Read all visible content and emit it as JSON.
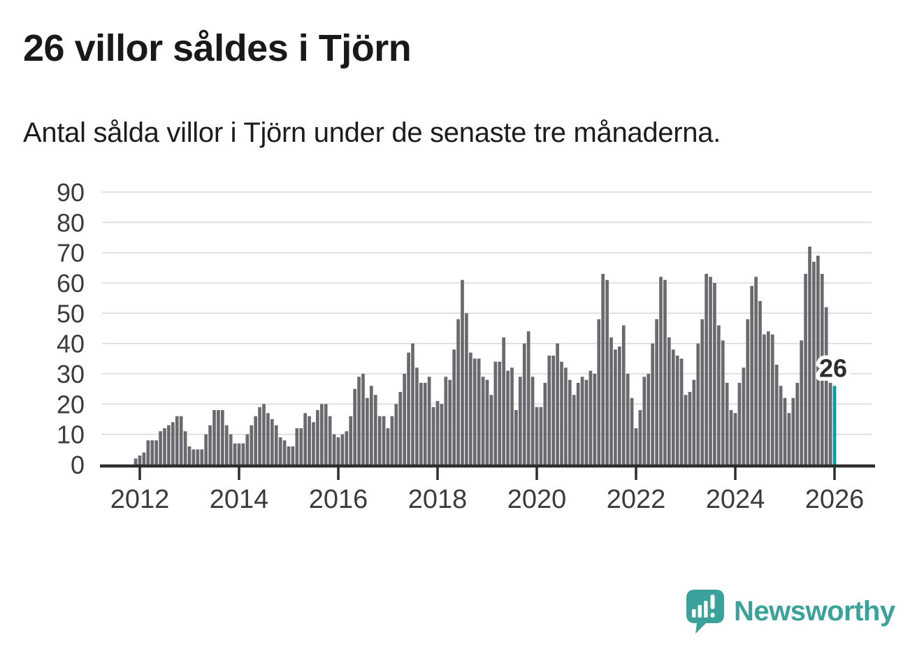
{
  "title": "26 villor såldes i Tjörn",
  "subtitle": "Antal sålda villor i Tjörn under de senaste tre månaderna.",
  "annotation": {
    "last_value_label": "26"
  },
  "logo": {
    "text": "Newsworthy",
    "color": "#3ba29b",
    "icon": "newsworthy-speech-bubble-bar-chart-icon"
  },
  "chart_data": {
    "type": "bar",
    "title": "26 villor såldes i Tjörn",
    "subtitle": "Antal sålda villor i Tjörn under de senaste tre månaderna.",
    "xlabel": "",
    "ylabel": "",
    "x_frequency": "monthly",
    "x_first_month": "2011-12",
    "x_last_month": "2026-01",
    "xtick_labels": [
      "2012",
      "2014",
      "2016",
      "2018",
      "2020",
      "2022",
      "2024",
      "2026"
    ],
    "ytick_values": [
      0,
      10,
      20,
      30,
      40,
      50,
      60,
      70,
      80,
      90
    ],
    "ylim": [
      0,
      90
    ],
    "grid": true,
    "legend_position": "none",
    "bar_color": "#6a6a6e",
    "highlight_color": "#00a0a2",
    "axis_color": "#2d2d2d",
    "gridline_color": "#d9d9d9",
    "highlight_index": 169,
    "annotated_last_value": 26,
    "values": [
      2,
      3,
      4,
      8,
      8,
      8,
      11,
      12,
      13,
      14,
      16,
      16,
      11,
      6,
      5,
      5,
      5,
      10,
      13,
      18,
      18,
      18,
      13,
      10,
      7,
      7,
      7,
      10,
      13,
      16,
      19,
      20,
      17,
      15,
      13,
      9,
      8,
      6,
      6,
      12,
      12,
      17,
      16,
      14,
      18,
      20,
      20,
      16,
      10,
      9,
      10,
      11,
      16,
      25,
      29,
      30,
      22,
      26,
      23,
      16,
      16,
      12,
      16,
      20,
      24,
      30,
      37,
      40,
      32,
      27,
      27,
      29,
      19,
      21,
      20,
      29,
      28,
      38,
      48,
      61,
      50,
      37,
      35,
      35,
      29,
      28,
      23,
      34,
      34,
      42,
      31,
      32,
      18,
      29,
      40,
      44,
      29,
      19,
      19,
      27,
      36,
      36,
      40,
      34,
      32,
      28,
      23,
      27,
      29,
      28,
      31,
      30,
      48,
      63,
      61,
      42,
      38,
      39,
      46,
      30,
      22,
      12,
      18,
      29,
      30,
      40,
      48,
      62,
      61,
      42,
      38,
      36,
      35,
      23,
      24,
      28,
      40,
      48,
      63,
      62,
      60,
      46,
      41,
      27,
      18,
      17,
      27,
      32,
      48,
      59,
      62,
      54,
      43,
      44,
      43,
      33,
      26,
      22,
      17,
      22,
      27,
      41,
      63,
      72,
      67,
      69,
      63,
      52,
      27,
      26
    ]
  }
}
